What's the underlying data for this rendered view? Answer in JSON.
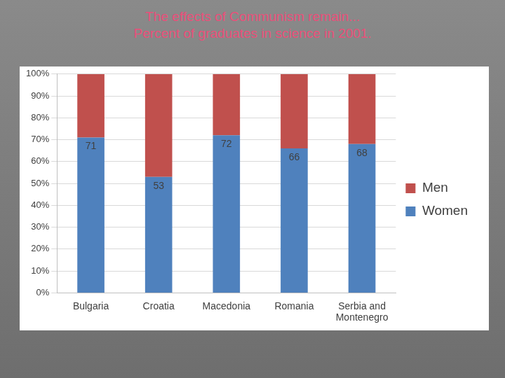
{
  "chart_data": {
    "type": "bar",
    "title": "The effects of Communism remain...",
    "subtitle": "Percent of graduates in science in 2001.",
    "categories": [
      "Bulgaria",
      "Croatia",
      "Macedonia",
      "Romania",
      "Serbia and Montenegro"
    ],
    "series": [
      {
        "name": "Women",
        "color": "#4f81bd",
        "values": [
          71,
          53,
          72,
          66,
          68
        ],
        "data_labels": true
      },
      {
        "name": "Men",
        "color": "#c0504d",
        "values": [
          29,
          47,
          28,
          34,
          32
        ],
        "data_labels": false
      }
    ],
    "stacked": true,
    "ylim": [
      0,
      100
    ],
    "yticks": [
      {
        "value": 0,
        "label": "0%"
      },
      {
        "value": 10,
        "label": "10%"
      },
      {
        "value": 20,
        "label": "20%"
      },
      {
        "value": 30,
        "label": "30%"
      },
      {
        "value": 40,
        "label": "40%"
      },
      {
        "value": 50,
        "label": "50%"
      },
      {
        "value": 60,
        "label": "60%"
      },
      {
        "value": 70,
        "label": "70%"
      },
      {
        "value": 80,
        "label": "80%"
      },
      {
        "value": 90,
        "label": "90%"
      },
      {
        "value": 100,
        "label": "100%"
      }
    ],
    "grid": true,
    "legend": "right"
  }
}
